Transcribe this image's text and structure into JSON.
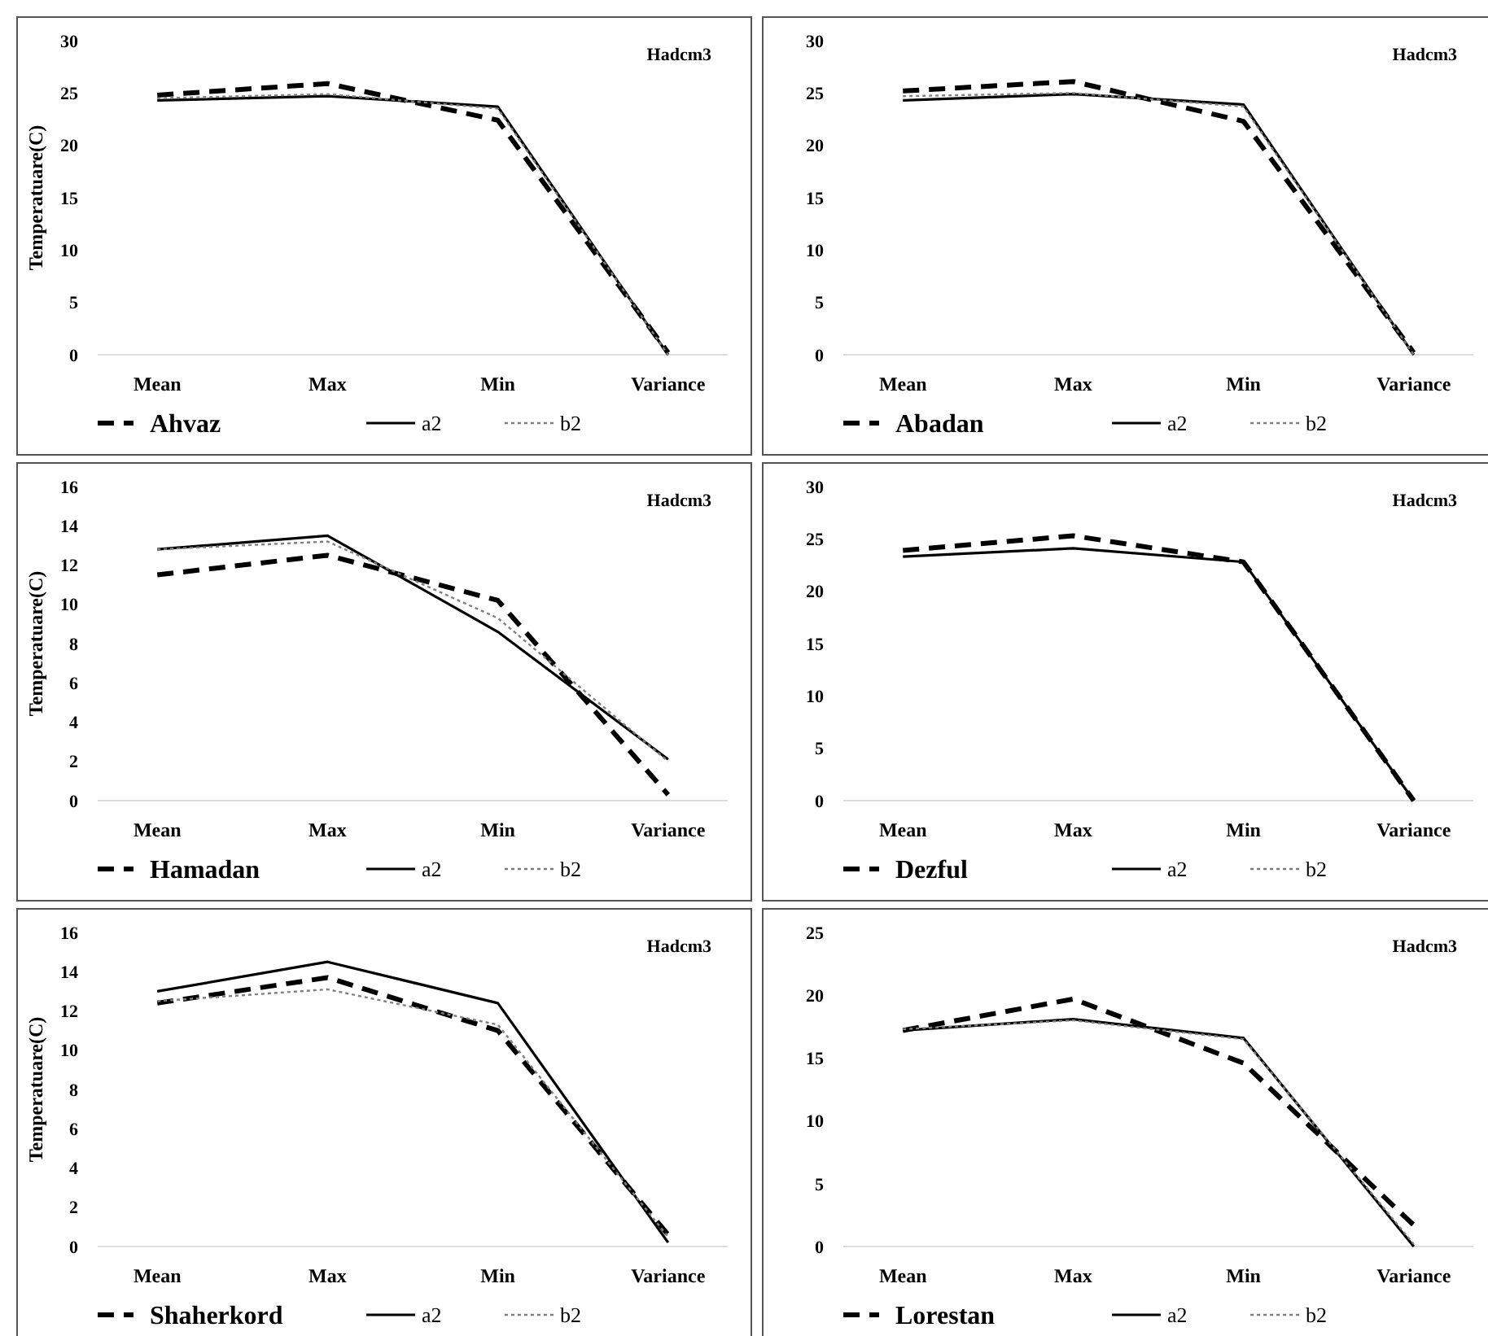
{
  "chart_data": [
    {
      "type": "line",
      "title": "Hadcm3",
      "ylabel": "Temperatuare(C)",
      "categories": [
        "Mean",
        "Max",
        "Min",
        "Variance"
      ],
      "ylim": [
        0,
        30
      ],
      "yticks": [
        0,
        5,
        10,
        15,
        20,
        25,
        30
      ],
      "legend": "bottom",
      "grid": false,
      "series": [
        {
          "name": "Ahvaz",
          "color": "#000000",
          "line_style": "dashed",
          "values": [
            24.8,
            25.9,
            22.4,
            0.2
          ]
        },
        {
          "name": "a2",
          "color": "#000000",
          "line_style": "solid",
          "values": [
            24.3,
            24.7,
            23.7,
            0
          ]
        },
        {
          "name": "b2",
          "color": "#808080",
          "line_style": "dotted",
          "values": [
            24.5,
            24.9,
            23.5,
            0
          ]
        }
      ]
    },
    {
      "type": "line",
      "title": "Hadcm3",
      "categories": [
        "Mean",
        "Max",
        "Min",
        "Variance"
      ],
      "ylim": [
        0,
        30
      ],
      "yticks": [
        0,
        5,
        10,
        15,
        20,
        25,
        30
      ],
      "legend": "bottom",
      "grid": false,
      "series": [
        {
          "name": "Abadan",
          "color": "#000000",
          "line_style": "dashed",
          "values": [
            25.2,
            26.1,
            22.3,
            0.2
          ]
        },
        {
          "name": "a2",
          "color": "#000000",
          "line_style": "solid",
          "values": [
            24.3,
            24.9,
            23.9,
            0
          ]
        },
        {
          "name": "b2",
          "color": "#808080",
          "line_style": "dotted",
          "values": [
            24.7,
            25.0,
            23.7,
            0
          ]
        }
      ]
    },
    {
      "type": "line",
      "title": "Hadcm3",
      "ylabel": "Temperatuare(C)",
      "categories": [
        "Mean",
        "Max",
        "Min",
        "Variance"
      ],
      "ylim": [
        0,
        16
      ],
      "yticks": [
        0,
        2,
        4,
        6,
        8,
        10,
        12,
        14,
        16
      ],
      "legend": "bottom",
      "grid": false,
      "series": [
        {
          "name": "Hamadan",
          "color": "#000000",
          "line_style": "dashed",
          "values": [
            11.5,
            12.5,
            10.2,
            0.3
          ]
        },
        {
          "name": "a2",
          "color": "#000000",
          "line_style": "solid",
          "values": [
            12.8,
            13.5,
            8.6,
            2.1
          ]
        },
        {
          "name": "b2",
          "color": "#808080",
          "line_style": "dotted",
          "values": [
            12.8,
            13.2,
            9.3,
            2.0
          ]
        }
      ]
    },
    {
      "type": "line",
      "title": "Hadcm3",
      "categories": [
        "Mean",
        "Max",
        "Min",
        "Variance"
      ],
      "ylim": [
        0,
        30
      ],
      "yticks": [
        0,
        5,
        10,
        15,
        20,
        25,
        30
      ],
      "legend": "bottom",
      "grid": false,
      "series": [
        {
          "name": "Dezful",
          "color": "#000000",
          "line_style": "dashed",
          "values": [
            23.9,
            25.3,
            22.8,
            0
          ]
        },
        {
          "name": "a2",
          "color": "#000000",
          "line_style": "solid",
          "values": [
            23.3,
            24.1,
            22.8,
            0
          ]
        },
        {
          "name": "b2",
          "color": "#808080",
          "line_style": "dotted",
          "values": [
            null,
            null,
            null,
            null
          ]
        }
      ]
    },
    {
      "type": "line",
      "title": "Hadcm3",
      "ylabel": "Temperatuare(C)",
      "categories": [
        "Mean",
        "Max",
        "Min",
        "Variance"
      ],
      "ylim": [
        0,
        16
      ],
      "yticks": [
        0,
        2,
        4,
        6,
        8,
        10,
        12,
        14,
        16
      ],
      "legend": "bottom",
      "grid": false,
      "series": [
        {
          "name": "Shaherkord",
          "color": "#000000",
          "line_style": "dashed",
          "values": [
            12.4,
            13.7,
            11.0,
            0.6
          ]
        },
        {
          "name": "a2",
          "color": "#000000",
          "line_style": "solid",
          "values": [
            13.0,
            14.5,
            12.4,
            0.2
          ]
        },
        {
          "name": "b2",
          "color": "#808080",
          "line_style": "dotted",
          "values": [
            12.5,
            13.1,
            11.3,
            0.5
          ]
        }
      ]
    },
    {
      "type": "line",
      "title": "Hadcm3",
      "categories": [
        "Mean",
        "Max",
        "Min",
        "Variance"
      ],
      "ylim": [
        0,
        25
      ],
      "yticks": [
        0,
        5,
        10,
        15,
        20,
        25
      ],
      "legend": "bottom",
      "grid": false,
      "series": [
        {
          "name": "Lorestan",
          "color": "#000000",
          "line_style": "dashed",
          "values": [
            17.2,
            19.7,
            14.6,
            1.7
          ]
        },
        {
          "name": "a2",
          "color": "#000000",
          "line_style": "solid",
          "values": [
            17.2,
            18.1,
            16.6,
            0
          ]
        },
        {
          "name": "b2",
          "color": "#808080",
          "line_style": "dotted",
          "values": [
            17.3,
            18.0,
            16.5,
            0.2
          ]
        }
      ]
    }
  ]
}
